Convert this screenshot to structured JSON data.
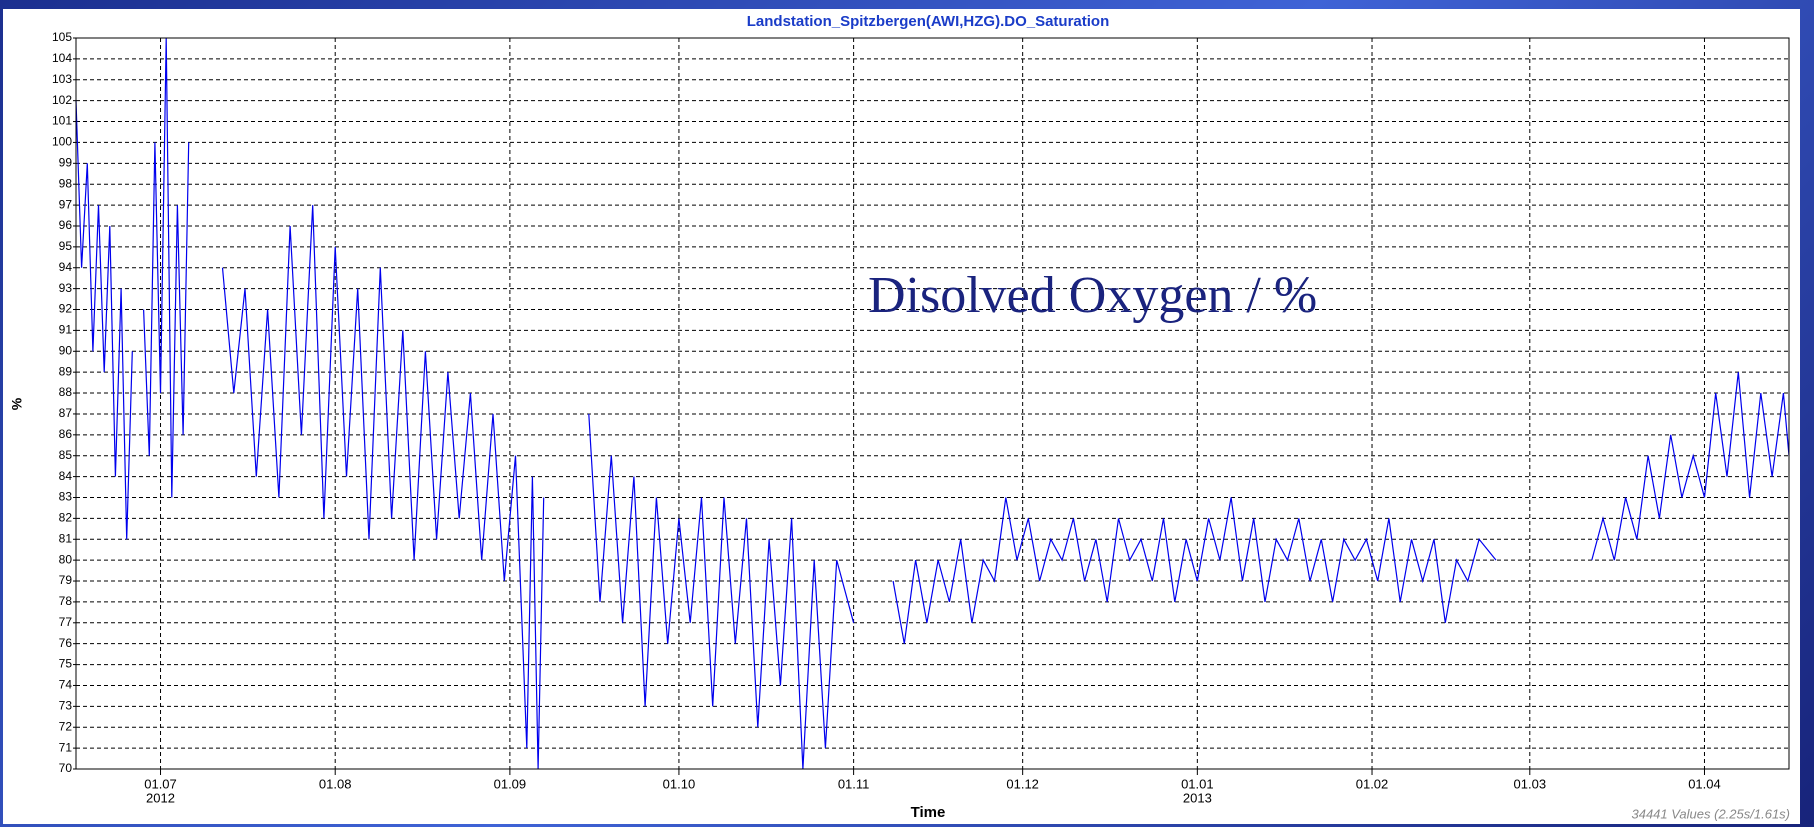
{
  "chart_data": {
    "type": "line",
    "title": "Landstation_Spitzbergen(AWI,HZG).DO_Saturation",
    "y_label": "%",
    "x_label": "Time",
    "annotation": "Disolved Oxygen / %",
    "footer": "34441 Values (2.25s/1.61s)",
    "grid": true,
    "xlim": [
      "2012-06-16",
      "2013-04-16"
    ],
    "ylim": [
      70,
      105
    ],
    "yticks": [
      70,
      71,
      72,
      73,
      74,
      75,
      76,
      77,
      78,
      79,
      80,
      81,
      82,
      83,
      84,
      85,
      86,
      87,
      88,
      89,
      90,
      91,
      92,
      93,
      94,
      95,
      96,
      97,
      98,
      99,
      100,
      101,
      102,
      103,
      104,
      105
    ],
    "xticks": [
      {
        "value": "2012-07-01",
        "label": "01.07"
      },
      {
        "value": "2012-08-01",
        "label": "01.08"
      },
      {
        "value": "2012-09-01",
        "label": "01.09"
      },
      {
        "value": "2012-10-01",
        "label": "01.10"
      },
      {
        "value": "2012-11-01",
        "label": "01.11"
      },
      {
        "value": "2012-12-01",
        "label": "01.12"
      },
      {
        "value": "2013-01-01",
        "label": "01.01"
      },
      {
        "value": "2013-02-01",
        "label": "01.02"
      },
      {
        "value": "2013-03-01",
        "label": "01.03"
      },
      {
        "value": "2013-04-01",
        "label": "01.04"
      }
    ],
    "x_year_labels": [
      {
        "value": "2012-07-01",
        "label": "2012"
      },
      {
        "value": "2013-01-01",
        "label": "2013"
      }
    ],
    "x": [
      "2012-06-16",
      "2012-06-17",
      "2012-06-18",
      "2012-06-19",
      "2012-06-20",
      "2012-06-21",
      "2012-06-22",
      "2012-06-23",
      "2012-06-24",
      "2012-06-25",
      "2012-06-26",
      "2012-06-27",
      "2012-06-28",
      "2012-06-29",
      "2012-06-30",
      "2012-07-01",
      "2012-07-02",
      "2012-07-03",
      "2012-07-04",
      "2012-07-05",
      "2012-07-06",
      "2012-07-09",
      "2012-07-12",
      "2012-07-14",
      "2012-07-16",
      "2012-07-18",
      "2012-07-20",
      "2012-07-22",
      "2012-07-24",
      "2012-07-26",
      "2012-07-28",
      "2012-07-30",
      "2012-08-01",
      "2012-08-03",
      "2012-08-05",
      "2012-08-07",
      "2012-08-09",
      "2012-08-11",
      "2012-08-13",
      "2012-08-15",
      "2012-08-17",
      "2012-08-19",
      "2012-08-21",
      "2012-08-23",
      "2012-08-25",
      "2012-08-27",
      "2012-08-29",
      "2012-08-31",
      "2012-09-02",
      "2012-09-04",
      "2012-09-05",
      "2012-09-06",
      "2012-09-07",
      "2012-09-11",
      "2012-09-15",
      "2012-09-17",
      "2012-09-19",
      "2012-09-21",
      "2012-09-23",
      "2012-09-25",
      "2012-09-27",
      "2012-09-29",
      "2012-10-01",
      "2012-10-03",
      "2012-10-05",
      "2012-10-07",
      "2012-10-09",
      "2012-10-11",
      "2012-10-13",
      "2012-10-15",
      "2012-10-17",
      "2012-10-19",
      "2012-10-21",
      "2012-10-23",
      "2012-10-25",
      "2012-10-27",
      "2012-10-29",
      "2012-11-01",
      "2012-11-04",
      "2012-11-08",
      "2012-11-10",
      "2012-11-12",
      "2012-11-14",
      "2012-11-16",
      "2012-11-18",
      "2012-11-20",
      "2012-11-22",
      "2012-11-24",
      "2012-11-26",
      "2012-11-28",
      "2012-11-30",
      "2012-12-02",
      "2012-12-04",
      "2012-12-06",
      "2012-12-08",
      "2012-12-10",
      "2012-12-12",
      "2012-12-14",
      "2012-12-16",
      "2012-12-18",
      "2012-12-20",
      "2012-12-22",
      "2012-12-24",
      "2012-12-26",
      "2012-12-28",
      "2012-12-30",
      "2013-01-01",
      "2013-01-03",
      "2013-01-05",
      "2013-01-07",
      "2013-01-09",
      "2013-01-11",
      "2013-01-13",
      "2013-01-15",
      "2013-01-17",
      "2013-01-19",
      "2013-01-21",
      "2013-01-23",
      "2013-01-25",
      "2013-01-27",
      "2013-01-29",
      "2013-01-31",
      "2013-02-02",
      "2013-02-04",
      "2013-02-06",
      "2013-02-08",
      "2013-02-10",
      "2013-02-12",
      "2013-02-14",
      "2013-02-16",
      "2013-02-18",
      "2013-02-20",
      "2013-02-23",
      "2013-03-01",
      "2013-03-12",
      "2013-03-14",
      "2013-03-16",
      "2013-03-18",
      "2013-03-20",
      "2013-03-22",
      "2013-03-24",
      "2013-03-26",
      "2013-03-28",
      "2013-03-30",
      "2013-04-01",
      "2013-04-03",
      "2013-04-05",
      "2013-04-07",
      "2013-04-09",
      "2013-04-11",
      "2013-04-13",
      "2013-04-15",
      "2013-04-16"
    ],
    "series": [
      {
        "name": "DO_Saturation",
        "color": "#0000ee",
        "values": [
          102,
          94,
          99,
          90,
          97,
          89,
          96,
          84,
          93,
          81,
          90,
          null,
          92,
          85,
          100,
          88,
          105,
          83,
          97,
          86,
          100,
          null,
          94,
          88,
          93,
          84,
          92,
          83,
          96,
          86,
          97,
          82,
          95,
          84,
          93,
          81,
          94,
          82,
          91,
          80,
          90,
          81,
          89,
          82,
          88,
          80,
          87,
          79,
          85,
          71,
          84,
          70,
          83,
          null,
          87,
          78,
          85,
          77,
          84,
          73,
          83,
          76,
          82,
          77,
          83,
          73,
          83,
          76,
          82,
          72,
          81,
          74,
          82,
          70,
          80,
          71,
          80,
          77,
          null,
          79,
          76,
          80,
          77,
          80,
          78,
          81,
          77,
          80,
          79,
          83,
          80,
          82,
          79,
          81,
          80,
          82,
          79,
          81,
          78,
          82,
          80,
          81,
          79,
          82,
          78,
          81,
          79,
          82,
          80,
          83,
          79,
          82,
          78,
          81,
          80,
          82,
          79,
          81,
          78,
          81,
          80,
          81,
          79,
          82,
          78,
          81,
          79,
          81,
          77,
          80,
          79,
          81,
          80,
          null,
          80,
          82,
          80,
          83,
          81,
          85,
          82,
          86,
          83,
          85,
          83,
          88,
          84,
          89,
          83,
          88,
          84,
          88,
          85
        ]
      }
    ]
  }
}
